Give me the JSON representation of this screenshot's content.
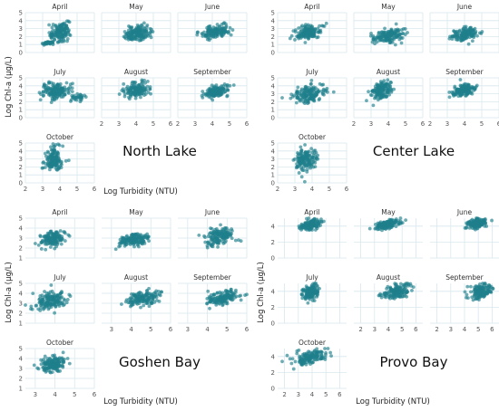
{
  "colors": {
    "point": "#1f7f8c",
    "grid": "#d8e8ee",
    "background": "#ffffff"
  },
  "chart_data": [
    {
      "type": "scatter",
      "title": "North Lake",
      "xlabel": "Log Turbidity (NTU)",
      "ylabel": "Log Chl-a (µg/L)",
      "xlim": [
        2,
        6
      ],
      "ylim": [
        0,
        5
      ],
      "xticks": [
        "2",
        "3",
        "4",
        "5",
        "6"
      ],
      "yticks": [
        "0",
        "1",
        "2",
        "3",
        "4",
        "5"
      ],
      "grid": true,
      "panels": [
        {
          "month": "April",
          "cx": 4.0,
          "cy": 2.6,
          "sx": 0.4,
          "sy": 0.8,
          "extra": [
            {
              "cx": 3.3,
              "cy": 1.2,
              "sx": 0.25,
              "sy": 0.15
            }
          ]
        },
        {
          "month": "May",
          "cx": 4.1,
          "cy": 2.4,
          "sx": 0.55,
          "sy": 0.6
        },
        {
          "month": "June",
          "cx": 4.2,
          "cy": 2.6,
          "sx": 0.6,
          "sy": 0.5
        },
        {
          "month": "July",
          "cx": 3.8,
          "cy": 3.4,
          "sx": 0.6,
          "sy": 0.7,
          "extra": [
            {
              "cx": 5.0,
              "cy": 2.5,
              "sx": 0.3,
              "sy": 0.3
            }
          ]
        },
        {
          "month": "August",
          "cx": 4.0,
          "cy": 3.5,
          "sx": 0.55,
          "sy": 0.6
        },
        {
          "month": "September",
          "cx": 4.2,
          "cy": 3.2,
          "sx": 0.5,
          "sy": 0.5
        },
        {
          "month": "October",
          "cx": 3.6,
          "cy": 3.0,
          "sx": 0.35,
          "sy": 1.0
        }
      ]
    },
    {
      "type": "scatter",
      "title": "Center Lake",
      "xlabel": "",
      "ylabel": "",
      "xlim": [
        2,
        6
      ],
      "ylim": [
        0,
        5
      ],
      "xticks": [
        "2",
        "3",
        "4",
        "5",
        "6"
      ],
      "yticks": [
        "0",
        "1",
        "2",
        "3",
        "4",
        "5"
      ],
      "grid": true,
      "panels": [
        {
          "month": "April",
          "cx": 3.8,
          "cy": 2.5,
          "sx": 0.5,
          "sy": 0.7
        },
        {
          "month": "May",
          "cx": 4.0,
          "cy": 2.1,
          "sx": 0.6,
          "sy": 0.6
        },
        {
          "month": "June",
          "cx": 4.1,
          "cy": 2.3,
          "sx": 0.6,
          "sy": 0.6
        },
        {
          "month": "July",
          "cx": 3.8,
          "cy": 3.0,
          "sx": 0.7,
          "sy": 0.8
        },
        {
          "month": "August",
          "cx": 3.6,
          "cy": 3.3,
          "sx": 0.4,
          "sy": 0.8
        },
        {
          "month": "September",
          "cx": 3.9,
          "cy": 3.4,
          "sx": 0.45,
          "sy": 0.5
        },
        {
          "month": "October",
          "cx": 3.6,
          "cy": 2.9,
          "sx": 0.45,
          "sy": 1.0
        }
      ]
    },
    {
      "type": "scatter",
      "title": "Goshen Bay",
      "xlabel": "Log Turbidity (NTU)",
      "ylabel": "Log Chl-a (µg/L)",
      "xlim": [
        2.5,
        6
      ],
      "ylim": [
        1,
        5
      ],
      "xticks": [
        "3",
        "4",
        "5",
        "6"
      ],
      "yticks": [
        "1",
        "2",
        "3",
        "4",
        "5"
      ],
      "grid": true,
      "panels": [
        {
          "month": "April",
          "cx": 3.9,
          "cy": 2.9,
          "sx": 0.45,
          "sy": 0.5
        },
        {
          "month": "May",
          "cx": 4.1,
          "cy": 2.8,
          "sx": 0.55,
          "sy": 0.45
        },
        {
          "month": "June",
          "cx": 4.6,
          "cy": 3.2,
          "sx": 0.5,
          "sy": 0.6
        },
        {
          "month": "July",
          "cx": 3.8,
          "cy": 3.3,
          "sx": 0.6,
          "sy": 0.6
        },
        {
          "month": "August",
          "cx": 4.6,
          "cy": 3.5,
          "sx": 0.6,
          "sy": 0.55
        },
        {
          "month": "September",
          "cx": 4.8,
          "cy": 3.5,
          "sx": 0.55,
          "sy": 0.45
        },
        {
          "month": "October",
          "cx": 3.9,
          "cy": 3.4,
          "sx": 0.45,
          "sy": 0.55
        }
      ]
    },
    {
      "type": "scatter",
      "title": "Provo Bay",
      "xlabel": "Log Turbidity (NTU)",
      "ylabel": "Log Chl-a (µg/L)",
      "xlim": [
        1.5,
        6.5
      ],
      "ylim": [
        0,
        5
      ],
      "xticks": [
        "2",
        "3",
        "4",
        "5",
        "6"
      ],
      "yticks": [
        "0",
        "2",
        "4"
      ],
      "grid": true,
      "panels": [
        {
          "month": "April",
          "cx": 3.9,
          "cy": 4.2,
          "sx": 0.5,
          "sy": 0.4
        },
        {
          "month": "May",
          "cx": 3.9,
          "cy": 4.2,
          "sx": 0.6,
          "sy": 0.4
        },
        {
          "month": "June",
          "cx": 4.9,
          "cy": 4.3,
          "sx": 0.5,
          "sy": 0.4
        },
        {
          "month": "July",
          "cx": 3.9,
          "cy": 3.9,
          "sx": 0.4,
          "sy": 0.6
        },
        {
          "month": "August",
          "cx": 4.6,
          "cy": 4.0,
          "sx": 0.7,
          "sy": 0.6
        },
        {
          "month": "September",
          "cx": 5.2,
          "cy": 4.0,
          "sx": 0.55,
          "sy": 0.6
        },
        {
          "month": "October",
          "cx": 3.8,
          "cy": 3.9,
          "sx": 0.8,
          "sy": 0.55
        }
      ]
    }
  ]
}
